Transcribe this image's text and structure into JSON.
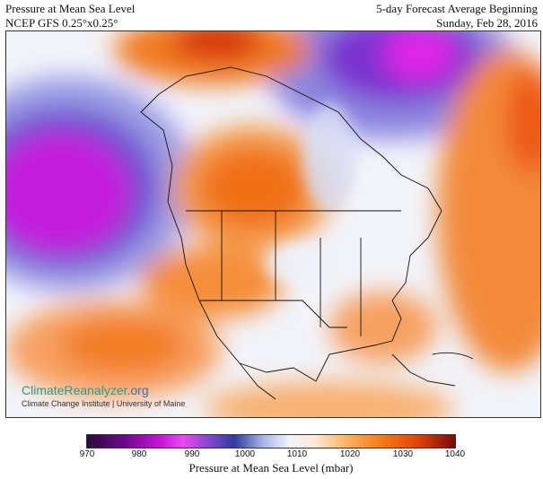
{
  "header": {
    "title_line1": "Pressure at Mean Sea Level",
    "title_line2": "NCEP GFS 0.25°x0.25°",
    "forecast_line1": "5-day Forecast Average Beginning",
    "forecast_line2": "Sunday, Feb 28, 2016"
  },
  "branding": {
    "name_part1": "ClimateReanalyzer",
    "name_part2": ".org",
    "subtitle": "Climate Change Institute | University of Maine"
  },
  "colorbar": {
    "ticks": [
      "970",
      "980",
      "990",
      "1000",
      "1010",
      "1020",
      "1030",
      "1040"
    ],
    "label": "Pressure at Mean Sea Level (mbar)",
    "range": [
      970,
      1040
    ],
    "colors": {
      "low": "#2a0a3a",
      "mid_low": "#c814d8",
      "mid": "#f0f4fc",
      "mid_high": "#f77a14",
      "high": "#7a0a0a"
    }
  }
}
